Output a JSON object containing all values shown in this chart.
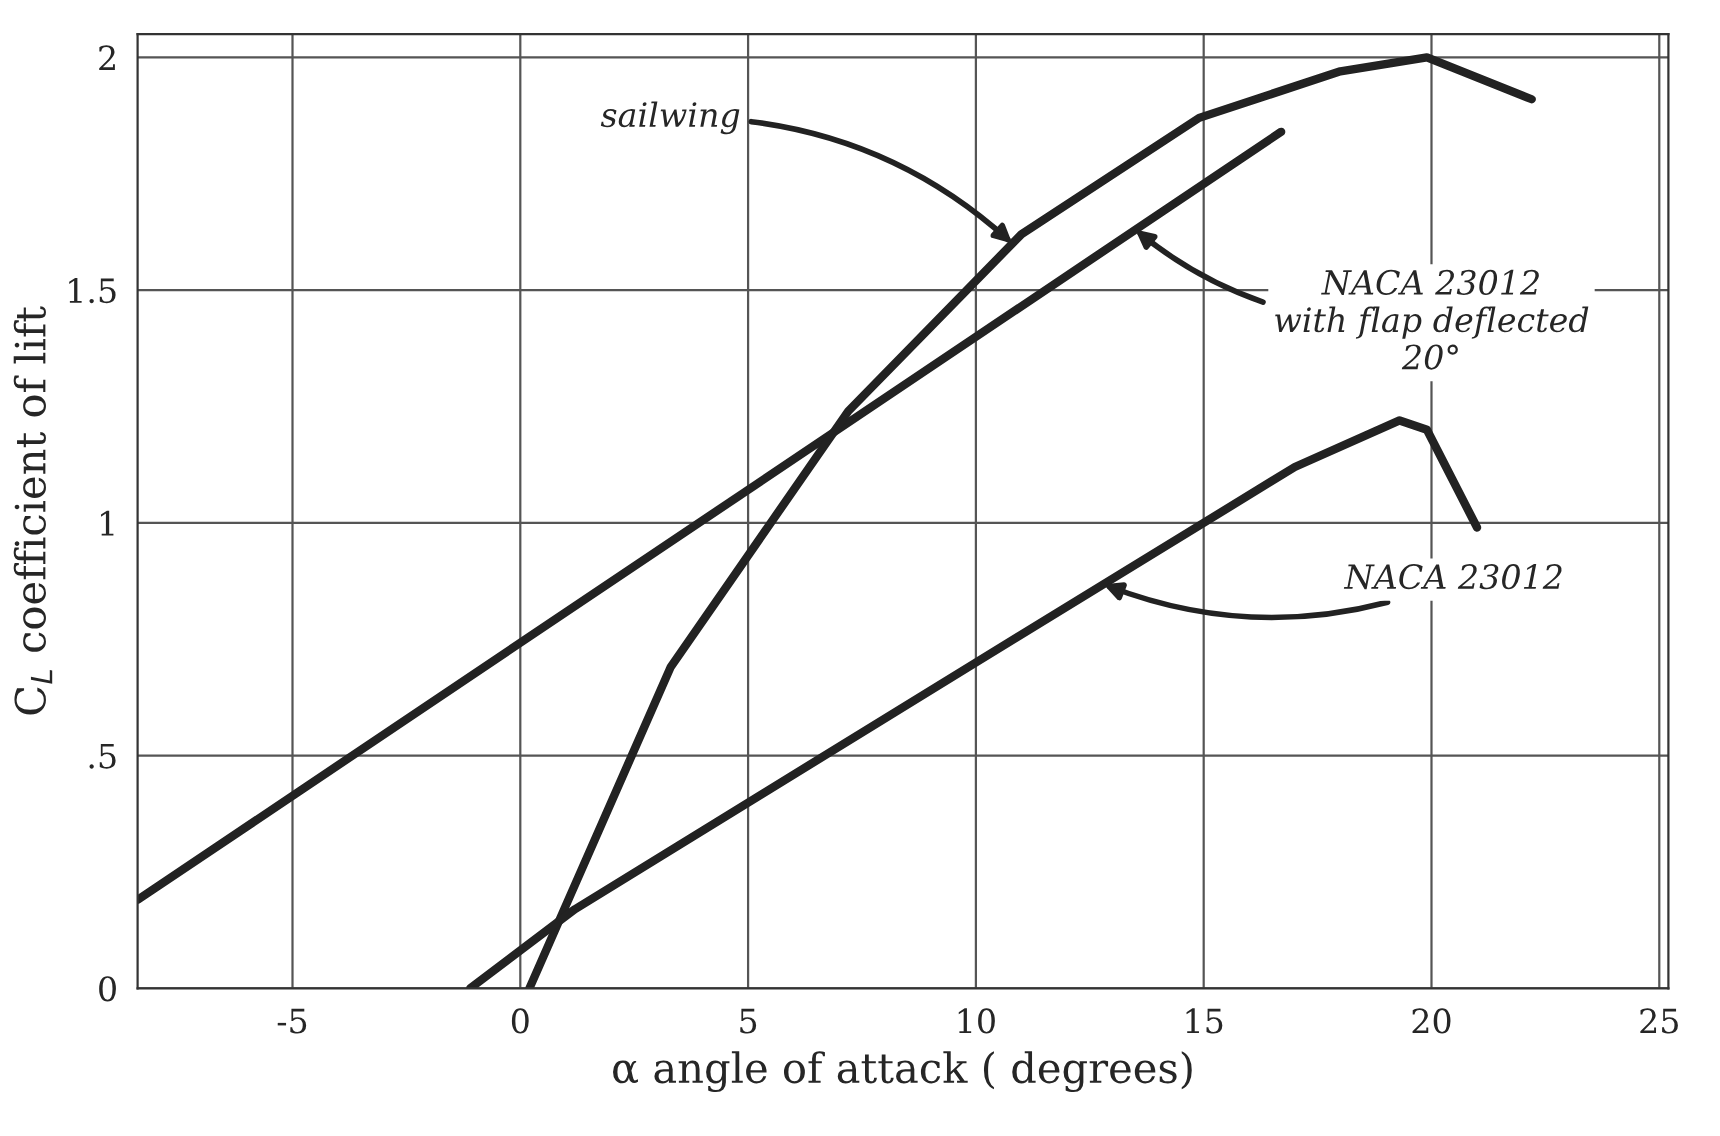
{
  "chart_data": {
    "type": "line",
    "xlabel": "α angle of attack ( degrees)",
    "ylabel": "C$_{L}$ coefficient of lift",
    "series": [
      {
        "color": "#222222",
        "x": [
          -8.4,
          16.7
        ],
        "values": [
          0.19,
          1.84
        ]
      },
      {
        "color": "#222222",
        "x": [
          0.2,
          3.3,
          7.2,
          11,
          14.9,
          18,
          19.9,
          22.2
        ],
        "values": [
          0,
          0.69,
          1.24,
          1.62,
          1.87,
          1.97,
          2.0,
          1.91
        ]
      },
      {
        "color": "#222222",
        "x": [
          -1.1,
          1.2,
          10,
          17,
          19.3,
          19.9,
          21
        ],
        "values": [
          0,
          0.17,
          0.7,
          1.12,
          1.22,
          1.2,
          0.99
        ]
      }
    ],
    "annotations": [
      {
        "text": "sailwing",
        "x": 10.8,
        "y": 1.6
      },
      {
        "text": "NACA 23012\nwith flap deflected\n20°",
        "x": 13.5,
        "y": 1.63
      },
      {
        "text": "NACA 23012",
        "x": 12.8,
        "y": 0.868
      }
    ],
    "xlim": [
      -8.4,
      25.2
    ],
    "ylim": [
      0,
      2.05
    ],
    "xticks": [
      -5,
      0,
      5,
      10,
      15,
      20,
      25
    ],
    "yticks": [
      0,
      {
        "value": 0.5,
        "label": ".5"
      },
      1,
      1.5,
      2
    ],
    "grid": true,
    "line_style": "solid",
    "marker": "none"
  }
}
